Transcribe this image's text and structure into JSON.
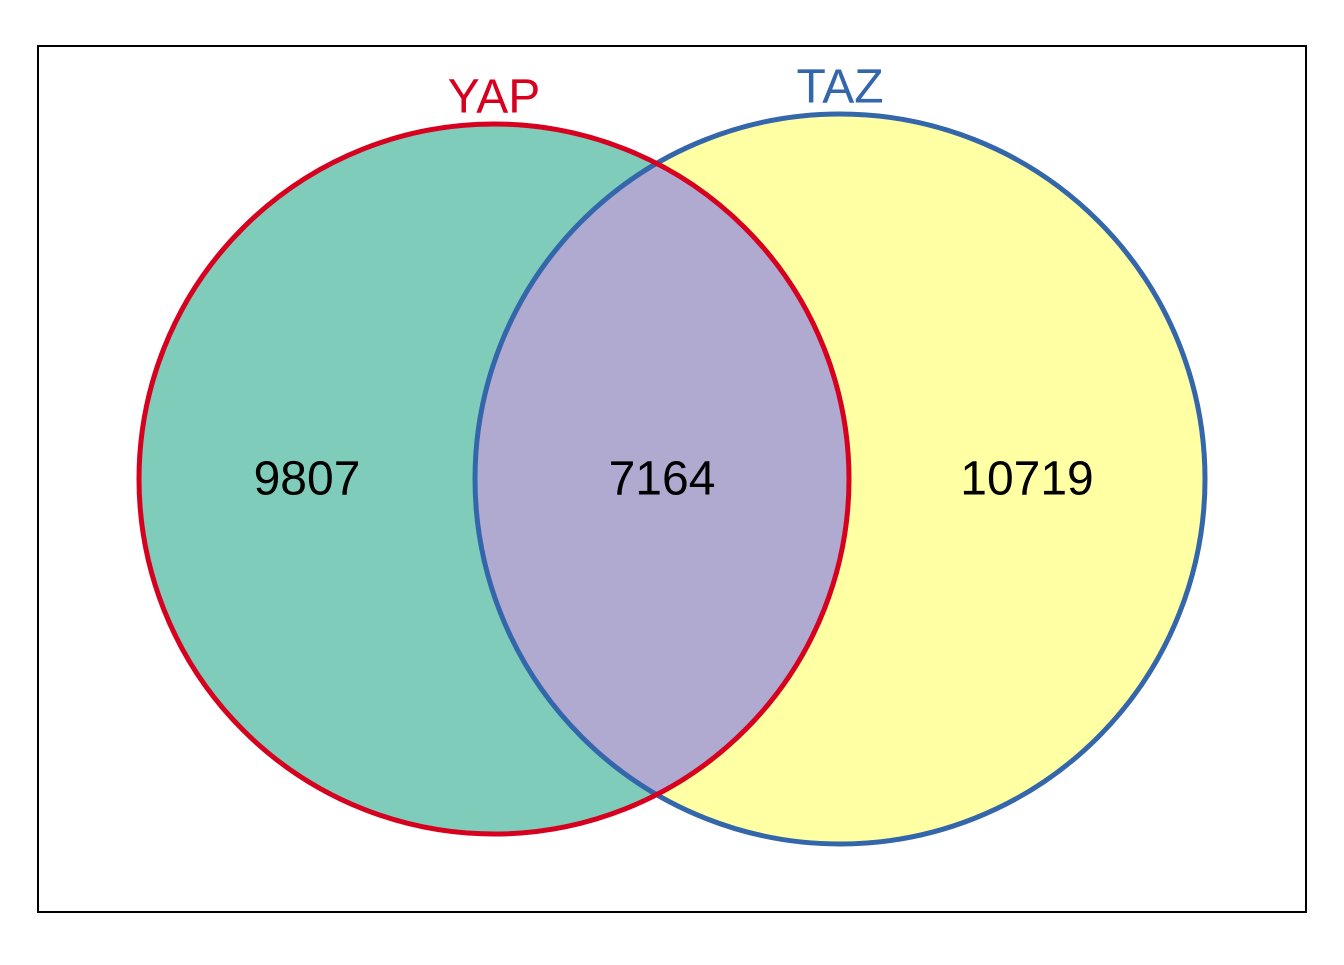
{
  "chart_data": {
    "type": "venn",
    "sets": [
      {
        "name": "YAP",
        "color": "#d7001f",
        "fill": "#7fccbb"
      },
      {
        "name": "TAZ",
        "color": "#3366aa",
        "fill": "#ffffa3"
      }
    ],
    "values": [
      9807,
      7164,
      10719
    ],
    "intersection_fill": "#b0aad0"
  }
}
